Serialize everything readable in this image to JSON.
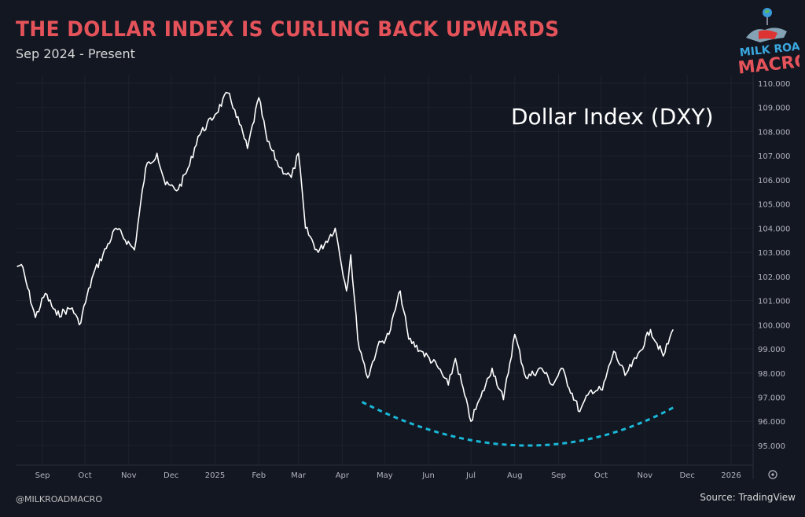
{
  "header": {
    "title": "THE DOLLAR INDEX IS CURLING BACK UPWARDS",
    "subtitle": "Sep 2024 - Present"
  },
  "logo": {
    "text_top": "MILK ROAD",
    "text_bottom": "MACRO"
  },
  "footer": {
    "handle": "@MILKROADMACRO",
    "source": "Source: TradingView"
  },
  "colors": {
    "background": "#131722",
    "title": "#e5535a",
    "line": "#ffffff",
    "trend": "#19b8d8"
  },
  "chart_data": {
    "type": "line",
    "annotation_label": "Dollar Index (DXY)",
    "ylim": [
      94.5,
      110.3
    ],
    "y_ticks": [
      "110.000",
      "109.000",
      "108.000",
      "107.000",
      "106.000",
      "105.000",
      "104.000",
      "103.000",
      "102.000",
      "101.000",
      "100.000",
      "99.000",
      "98.000",
      "97.000",
      "96.000",
      "95.000"
    ],
    "x_ticks": [
      {
        "label": "Sep",
        "date": "2024-09-01"
      },
      {
        "label": "Oct",
        "date": "2024-10-01"
      },
      {
        "label": "Nov",
        "date": "2024-11-01"
      },
      {
        "label": "Dec",
        "date": "2024-12-01"
      },
      {
        "label": "2025",
        "date": "2025-01-01"
      },
      {
        "label": "Feb",
        "date": "2025-02-01"
      },
      {
        "label": "Mar",
        "date": "2025-03-01"
      },
      {
        "label": "Apr",
        "date": "2025-04-01"
      },
      {
        "label": "May",
        "date": "2025-05-01"
      },
      {
        "label": "Jun",
        "date": "2025-06-01"
      },
      {
        "label": "Jul",
        "date": "2025-07-01"
      },
      {
        "label": "Aug",
        "date": "2025-08-01"
      },
      {
        "label": "Sep",
        "date": "2025-09-01"
      },
      {
        "label": "Oct",
        "date": "2025-10-01"
      },
      {
        "label": "Nov",
        "date": "2025-11-01"
      },
      {
        "label": "Dec",
        "date": "2025-12-01"
      },
      {
        "label": "2026",
        "date": "2026-01-01"
      }
    ],
    "grid": true,
    "series": [
      {
        "points": [
          [
            "2024-08-14",
            102.4
          ],
          [
            "2024-08-17",
            102.5
          ],
          [
            "2024-08-27",
            100.3
          ],
          [
            "2024-09-03",
            101.3
          ],
          [
            "2024-09-11",
            100.4
          ],
          [
            "2024-09-22",
            100.7
          ],
          [
            "2024-09-27",
            100.0
          ],
          [
            "2024-10-07",
            102.1
          ],
          [
            "2024-10-23",
            104.0
          ],
          [
            "2024-11-05",
            103.1
          ],
          [
            "2024-11-13",
            106.5
          ],
          [
            "2024-11-21",
            107.1
          ],
          [
            "2024-11-27",
            105.8
          ],
          [
            "2024-12-06",
            105.6
          ],
          [
            "2024-12-14",
            106.6
          ],
          [
            "2024-12-20",
            107.8
          ],
          [
            "2025-01-01",
            108.7
          ],
          [
            "2025-01-10",
            109.6
          ],
          [
            "2025-01-15",
            108.9
          ],
          [
            "2025-01-24",
            107.3
          ],
          [
            "2025-02-01",
            109.4
          ],
          [
            "2025-02-07",
            107.6
          ],
          [
            "2025-02-16",
            106.5
          ],
          [
            "2025-02-24",
            106.1
          ],
          [
            "2025-03-01",
            107.1
          ],
          [
            "2025-03-06",
            104.0
          ],
          [
            "2025-03-15",
            103.0
          ],
          [
            "2025-03-27",
            104.0
          ],
          [
            "2025-04-04",
            101.4
          ],
          [
            "2025-04-07",
            102.9
          ],
          [
            "2025-04-12",
            99.4
          ],
          [
            "2025-04-19",
            97.8
          ],
          [
            "2025-04-26",
            99.1
          ],
          [
            "2025-05-04",
            99.6
          ],
          [
            "2025-05-12",
            101.4
          ],
          [
            "2025-05-18",
            99.4
          ],
          [
            "2025-05-27",
            98.9
          ],
          [
            "2025-06-07",
            98.3
          ],
          [
            "2025-06-15",
            97.5
          ],
          [
            "2025-06-20",
            98.6
          ],
          [
            "2025-07-01",
            96.0
          ],
          [
            "2025-07-08",
            97.0
          ],
          [
            "2025-07-16",
            98.2
          ],
          [
            "2025-07-24",
            96.9
          ],
          [
            "2025-08-01",
            99.6
          ],
          [
            "2025-08-09",
            97.8
          ],
          [
            "2025-08-20",
            98.2
          ],
          [
            "2025-08-28",
            97.5
          ],
          [
            "2025-09-03",
            98.2
          ],
          [
            "2025-09-16",
            96.4
          ],
          [
            "2025-09-24",
            97.3
          ],
          [
            "2025-10-02",
            97.3
          ],
          [
            "2025-10-10",
            98.9
          ],
          [
            "2025-10-18",
            97.9
          ],
          [
            "2025-10-26",
            98.6
          ],
          [
            "2025-11-05",
            99.8
          ],
          [
            "2025-11-14",
            98.7
          ],
          [
            "2025-11-21",
            99.8
          ]
        ]
      }
    ],
    "trend_curve": {
      "style": "dashed",
      "points": [
        [
          "2025-04-15",
          96.8
        ],
        [
          "2025-08-07",
          95.0
        ],
        [
          "2025-11-22",
          96.6
        ]
      ]
    }
  }
}
